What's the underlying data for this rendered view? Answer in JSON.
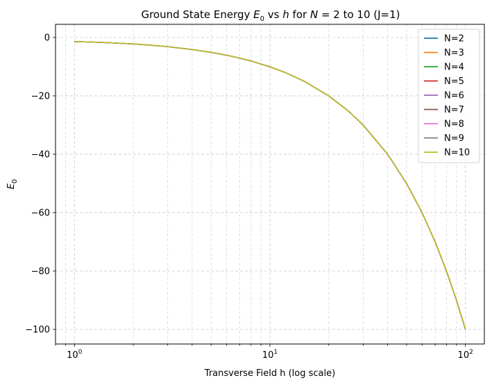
{
  "chart_data": {
    "type": "line",
    "title": {
      "prefix": "Ground State Energy ",
      "e_sym": "E",
      "e_sub": "0",
      "mid1": " vs ",
      "h_sym": "h",
      "mid2": " for ",
      "n_sym": "N",
      "suffix": " = 2 to 10 (J=1)"
    },
    "xlabel": "Transverse Field h (log scale)",
    "ylabel": {
      "sym": "E",
      "sub": "0"
    },
    "xscale": "log",
    "xlim": [
      0.8,
      125
    ],
    "ylim": [
      -105,
      4.5
    ],
    "xticks": [
      {
        "value": 1,
        "base": "10",
        "exp": "0"
      },
      {
        "value": 10,
        "base": "10",
        "exp": "1"
      },
      {
        "value": 100,
        "base": "10",
        "exp": "2"
      }
    ],
    "yticks": [
      {
        "value": 0,
        "label": "0"
      },
      {
        "value": -20,
        "label": "−20"
      },
      {
        "value": -40,
        "label": "−40"
      },
      {
        "value": -60,
        "label": "−60"
      },
      {
        "value": -80,
        "label": "−80"
      },
      {
        "value": -100,
        "label": "−100"
      }
    ],
    "grid": true,
    "legend_position": "top-right",
    "x": [
      1,
      1.2,
      1.5,
      2,
      2.5,
      3,
      4,
      5,
      6,
      7,
      8,
      10,
      12,
      15,
      20,
      25,
      30,
      40,
      50,
      60,
      70,
      80,
      90,
      100
    ],
    "series": [
      {
        "name": "N=2",
        "color": "#1f77b4",
        "values": [
          -1.41,
          -1.56,
          -1.8,
          -2.24,
          -2.69,
          -3.16,
          -4.12,
          -5.1,
          -6.08,
          -7.07,
          -8.06,
          -10.05,
          -12.04,
          -15.03,
          -20.02,
          -25.02,
          -30.02,
          -40.01,
          -50.01,
          -60.01,
          -70.01,
          -80.01,
          -90.01,
          -100.0
        ]
      },
      {
        "name": "N=3",
        "color": "#ff7f0e",
        "values": [
          -1.41,
          -1.56,
          -1.8,
          -2.24,
          -2.69,
          -3.16,
          -4.12,
          -5.1,
          -6.08,
          -7.07,
          -8.06,
          -10.05,
          -12.04,
          -15.03,
          -20.02,
          -25.02,
          -30.02,
          -40.01,
          -50.01,
          -60.01,
          -70.01,
          -80.01,
          -90.01,
          -100.0
        ]
      },
      {
        "name": "N=4",
        "color": "#2ca02c",
        "values": [
          -1.41,
          -1.56,
          -1.8,
          -2.24,
          -2.69,
          -3.16,
          -4.12,
          -5.1,
          -6.08,
          -7.07,
          -8.06,
          -10.05,
          -12.04,
          -15.03,
          -20.02,
          -25.02,
          -30.02,
          -40.01,
          -50.01,
          -60.01,
          -70.01,
          -80.01,
          -90.01,
          -100.0
        ]
      },
      {
        "name": "N=5",
        "color": "#d62728",
        "values": [
          -1.41,
          -1.56,
          -1.8,
          -2.24,
          -2.69,
          -3.16,
          -4.12,
          -5.1,
          -6.08,
          -7.07,
          -8.06,
          -10.05,
          -12.04,
          -15.03,
          -20.02,
          -25.02,
          -30.02,
          -40.01,
          -50.01,
          -60.01,
          -70.01,
          -80.01,
          -90.01,
          -100.0
        ]
      },
      {
        "name": "N=6",
        "color": "#9467bd",
        "values": [
          -1.41,
          -1.56,
          -1.8,
          -2.24,
          -2.69,
          -3.16,
          -4.12,
          -5.1,
          -6.08,
          -7.07,
          -8.06,
          -10.05,
          -12.04,
          -15.03,
          -20.02,
          -25.02,
          -30.02,
          -40.01,
          -50.01,
          -60.01,
          -70.01,
          -80.01,
          -90.01,
          -100.0
        ]
      },
      {
        "name": "N=7",
        "color": "#8c564b",
        "values": [
          -1.41,
          -1.56,
          -1.8,
          -2.24,
          -2.69,
          -3.16,
          -4.12,
          -5.1,
          -6.08,
          -7.07,
          -8.06,
          -10.05,
          -12.04,
          -15.03,
          -20.02,
          -25.02,
          -30.02,
          -40.01,
          -50.01,
          -60.01,
          -70.01,
          -80.01,
          -90.01,
          -100.0
        ]
      },
      {
        "name": "N=8",
        "color": "#e377c2",
        "values": [
          -1.41,
          -1.56,
          -1.8,
          -2.24,
          -2.69,
          -3.16,
          -4.12,
          -5.1,
          -6.08,
          -7.07,
          -8.06,
          -10.05,
          -12.04,
          -15.03,
          -20.02,
          -25.02,
          -30.02,
          -40.01,
          -50.01,
          -60.01,
          -70.01,
          -80.01,
          -90.01,
          -100.0
        ]
      },
      {
        "name": "N=9",
        "color": "#7f7f7f",
        "values": [
          -1.41,
          -1.56,
          -1.8,
          -2.24,
          -2.69,
          -3.16,
          -4.12,
          -5.1,
          -6.08,
          -7.07,
          -8.06,
          -10.05,
          -12.04,
          -15.03,
          -20.02,
          -25.02,
          -30.02,
          -40.01,
          -50.01,
          -60.01,
          -70.01,
          -80.01,
          -90.01,
          -100.0
        ]
      },
      {
        "name": "N=10",
        "color": "#bcbd22",
        "values": [
          -1.41,
          -1.56,
          -1.8,
          -2.24,
          -2.69,
          -3.16,
          -4.12,
          -5.1,
          -6.08,
          -7.07,
          -8.06,
          -10.05,
          -12.04,
          -15.03,
          -20.02,
          -25.02,
          -30.02,
          -40.01,
          -50.01,
          -60.01,
          -70.01,
          -80.01,
          -90.01,
          -100.0
        ]
      }
    ]
  }
}
